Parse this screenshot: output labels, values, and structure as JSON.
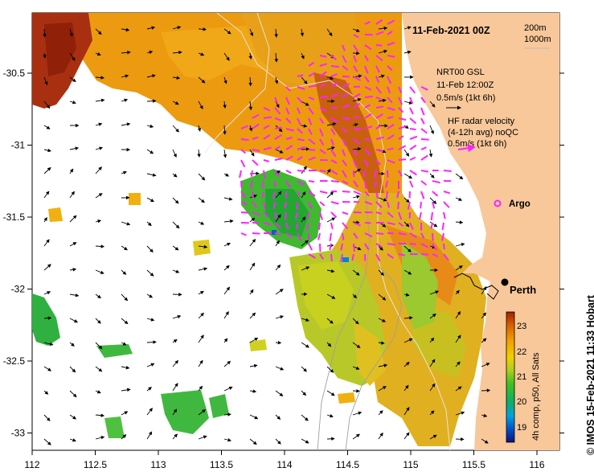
{
  "title": "11-Feb-2021 00Z",
  "depth_legend": [
    "200m",
    "1000m"
  ],
  "model_legend": {
    "lines": [
      "NRT00 GSL",
      "11-Feb 12:00Z",
      "0.5m/s (1kt 6h)"
    ]
  },
  "radar_legend": {
    "lines": [
      "HF radar velocity",
      "(4-12h avg) noQC",
      "0.5m/s (1kt 6h)"
    ]
  },
  "argo_label": "Argo",
  "city_label": "Perth",
  "credit": "© IMOS 15-Feb-2021 11:33 Hobart",
  "colorbar": {
    "label": "4h comp, p50, All Sats",
    "ticks": [
      "19",
      "20",
      "21",
      "22",
      "23"
    ]
  },
  "x_ticks": [
    "112",
    "112.5",
    "113",
    "113.5",
    "114",
    "114.5",
    "115",
    "115.5",
    "116"
  ],
  "y_ticks": [
    "-30.5",
    "-31",
    "-31.5",
    "-32",
    "-32.5",
    "-33"
  ],
  "colors": {
    "land": "#f8c89a",
    "ocean_missing": "#ffffff",
    "radar_arrow": "#ff22ff",
    "model_arrow": "#000000",
    "sst_scale": [
      "#10107a",
      "#0060d0",
      "#00b0e0",
      "#20b040",
      "#60c020",
      "#c8d820",
      "#f0c000",
      "#e89000",
      "#d06000",
      "#a02000"
    ]
  }
}
